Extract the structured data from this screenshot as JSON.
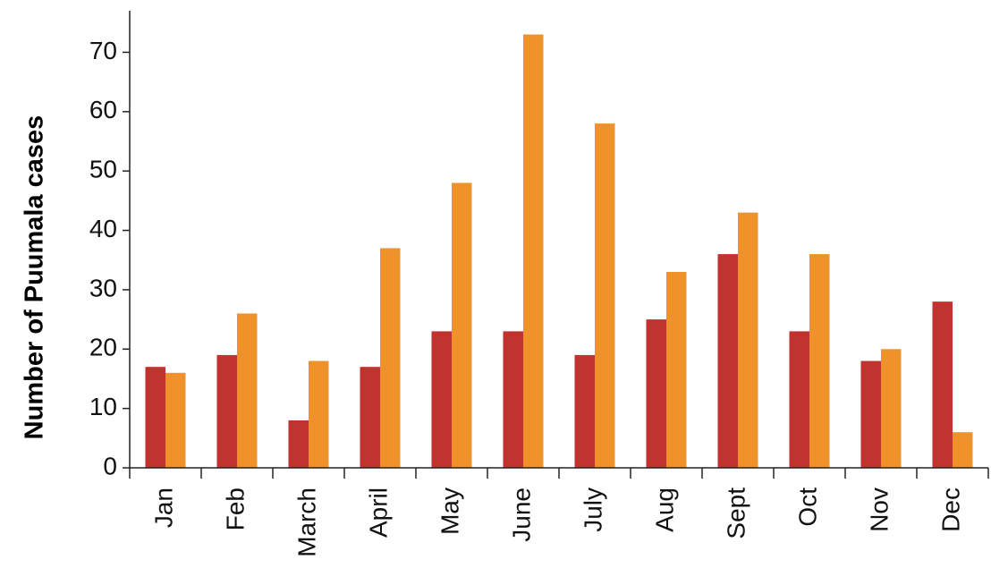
{
  "chart_data": {
    "type": "bar",
    "y_label": "Number of  Puumala cases",
    "categories": [
      "Jan",
      "Feb",
      "March",
      "April",
      "May",
      "June",
      "July",
      "Aug",
      "Sept",
      "Oct",
      "Nov",
      "Dec"
    ],
    "series": [
      {
        "color": "#c0332f",
        "values": [
          17,
          19,
          8,
          17,
          23,
          23,
          19,
          25,
          36,
          23,
          18,
          28
        ]
      },
      {
        "color": "#f0922b",
        "values": [
          16,
          26,
          18,
          37,
          48,
          73,
          58,
          33,
          43,
          36,
          20,
          6
        ]
      }
    ],
    "ylim": [
      0,
      77
    ],
    "yticks": [
      0,
      10,
      20,
      30,
      40,
      50,
      60,
      70
    ],
    "grid": false
  }
}
